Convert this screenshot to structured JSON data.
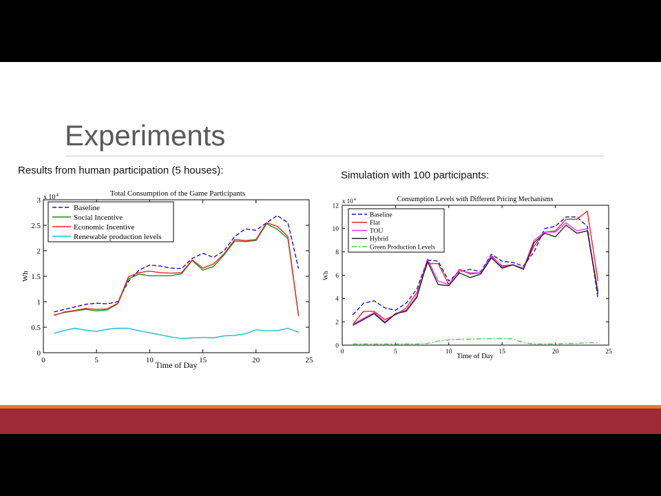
{
  "slide": {
    "title": "Experiments",
    "left_caption": "Results from human participation (5 houses):",
    "right_caption": "Simulation with 100 participants:"
  },
  "colors": {
    "title_text": "#595959",
    "title_rule": "#c9c9c9",
    "accent_orange": "#e87a28",
    "footer_maroon": "#9e2a38",
    "letterbox": "#000000"
  },
  "chart_data": [
    {
      "type": "line",
      "title": "Total Consumption of the Game Participants",
      "xlabel": "Time of Day",
      "ylabel": "Wh",
      "y_multiplier": "x 10",
      "y_multiplier_exp": "4",
      "xlim": [
        0,
        25
      ],
      "ylim": [
        0,
        3
      ],
      "x_ticks": [
        0,
        5,
        10,
        15,
        20,
        25
      ],
      "y_ticks": [
        0,
        0.5,
        1,
        1.5,
        2,
        2.5,
        3
      ],
      "grid": false,
      "legend_position": "top-left",
      "x": [
        1,
        2,
        3,
        4,
        5,
        6,
        7,
        8,
        9,
        10,
        11,
        12,
        13,
        14,
        15,
        16,
        17,
        18,
        19,
        20,
        21,
        22,
        23,
        24
      ],
      "series": [
        {
          "name": "Baseline",
          "color": "#1010d0",
          "style": "dashed",
          "values": [
            0.8,
            0.85,
            0.9,
            0.95,
            0.97,
            0.96,
            1.0,
            1.4,
            1.62,
            1.72,
            1.7,
            1.66,
            1.65,
            1.85,
            1.95,
            1.87,
            2.0,
            2.28,
            2.43,
            2.4,
            2.55,
            2.69,
            2.55,
            1.65
          ]
        },
        {
          "name": "Social Incentive",
          "color": "#1c8c1c",
          "style": "solid",
          "values": [
            0.74,
            0.79,
            0.82,
            0.85,
            0.82,
            0.84,
            0.96,
            1.45,
            1.54,
            1.51,
            1.51,
            1.51,
            1.55,
            1.81,
            1.62,
            1.69,
            1.92,
            2.19,
            2.18,
            2.2,
            2.53,
            2.42,
            2.24,
            0.73
          ]
        },
        {
          "name": "Economic Incentive",
          "color": "#e8261f",
          "style": "solid",
          "values": [
            0.73,
            0.8,
            0.83,
            0.87,
            0.85,
            0.86,
            0.97,
            1.49,
            1.57,
            1.6,
            1.57,
            1.56,
            1.57,
            1.82,
            1.66,
            1.74,
            1.94,
            2.22,
            2.2,
            2.22,
            2.55,
            2.48,
            2.28,
            0.72
          ]
        },
        {
          "name": "Renewable production levels",
          "color": "#17becf",
          "style": "solid",
          "values": [
            0.38,
            0.44,
            0.48,
            0.44,
            0.42,
            0.46,
            0.48,
            0.48,
            0.43,
            0.39,
            0.35,
            0.31,
            0.28,
            0.29,
            0.3,
            0.29,
            0.33,
            0.34,
            0.37,
            0.45,
            0.43,
            0.43,
            0.48,
            0.4
          ]
        }
      ]
    },
    {
      "type": "line",
      "title": "Consumption Levels with Different Pricing Mechanisms",
      "xlabel": "Time of Day",
      "ylabel": "Wh",
      "y_multiplier": "x 10",
      "y_multiplier_exp": "4",
      "xlim": [
        0,
        25
      ],
      "ylim": [
        0,
        12
      ],
      "x_ticks": [
        0,
        5,
        10,
        15,
        20,
        25
      ],
      "y_ticks": [
        0,
        2,
        4,
        6,
        8,
        10,
        12
      ],
      "grid": false,
      "legend_position": "top-left",
      "x": [
        1,
        2,
        3,
        4,
        5,
        6,
        7,
        8,
        9,
        10,
        11,
        12,
        13,
        14,
        15,
        16,
        17,
        18,
        19,
        20,
        21,
        22,
        23,
        24
      ],
      "series": [
        {
          "name": "Baseline",
          "color": "#1010d0",
          "style": "dashed",
          "values": [
            2.6,
            3.6,
            3.8,
            3.2,
            3.0,
            3.6,
            4.8,
            7.3,
            7.2,
            5.5,
            6.3,
            6.5,
            6.3,
            7.8,
            7.2,
            7.1,
            6.8,
            8.0,
            10.0,
            10.2,
            11.0,
            11.0,
            10.2,
            4.0
          ]
        },
        {
          "name": "Flat",
          "color": "#e8261f",
          "style": "solid",
          "values": [
            1.8,
            2.9,
            2.9,
            2.2,
            2.6,
            3.2,
            4.5,
            7.0,
            7.0,
            5.2,
            6.5,
            6.1,
            6.2,
            7.6,
            6.8,
            6.9,
            6.6,
            8.5,
            9.7,
            9.8,
            10.8,
            10.8,
            11.5,
            5.5
          ]
        },
        {
          "name": "TOU",
          "color": "#f030f0",
          "style": "solid",
          "values": [
            1.8,
            2.3,
            2.8,
            2.0,
            2.7,
            3.0,
            4.2,
            7.4,
            5.5,
            5.2,
            6.4,
            6.2,
            6.2,
            7.7,
            6.7,
            6.9,
            6.6,
            9.0,
            9.7,
            9.7,
            10.5,
            9.8,
            10.0,
            4.6
          ]
        },
        {
          "name": "Hybrid",
          "color": "#222222",
          "style": "solid",
          "values": [
            1.7,
            2.2,
            2.7,
            1.9,
            2.7,
            2.9,
            4.1,
            7.2,
            5.2,
            5.1,
            6.2,
            5.8,
            6.1,
            7.5,
            6.6,
            6.9,
            6.5,
            8.8,
            9.6,
            9.3,
            10.3,
            9.6,
            9.8,
            4.4
          ]
        },
        {
          "name": "Green Production Levels",
          "color": "#44cc44",
          "style": "dashdot",
          "values": [
            0.1,
            0.1,
            0.1,
            0.1,
            0.1,
            0.1,
            0.1,
            0.15,
            0.35,
            0.45,
            0.5,
            0.5,
            0.55,
            0.55,
            0.55,
            0.55,
            0.2,
            0.1,
            0.1,
            0.1,
            0.15,
            0.15,
            0.2,
            0.2
          ]
        }
      ]
    }
  ]
}
